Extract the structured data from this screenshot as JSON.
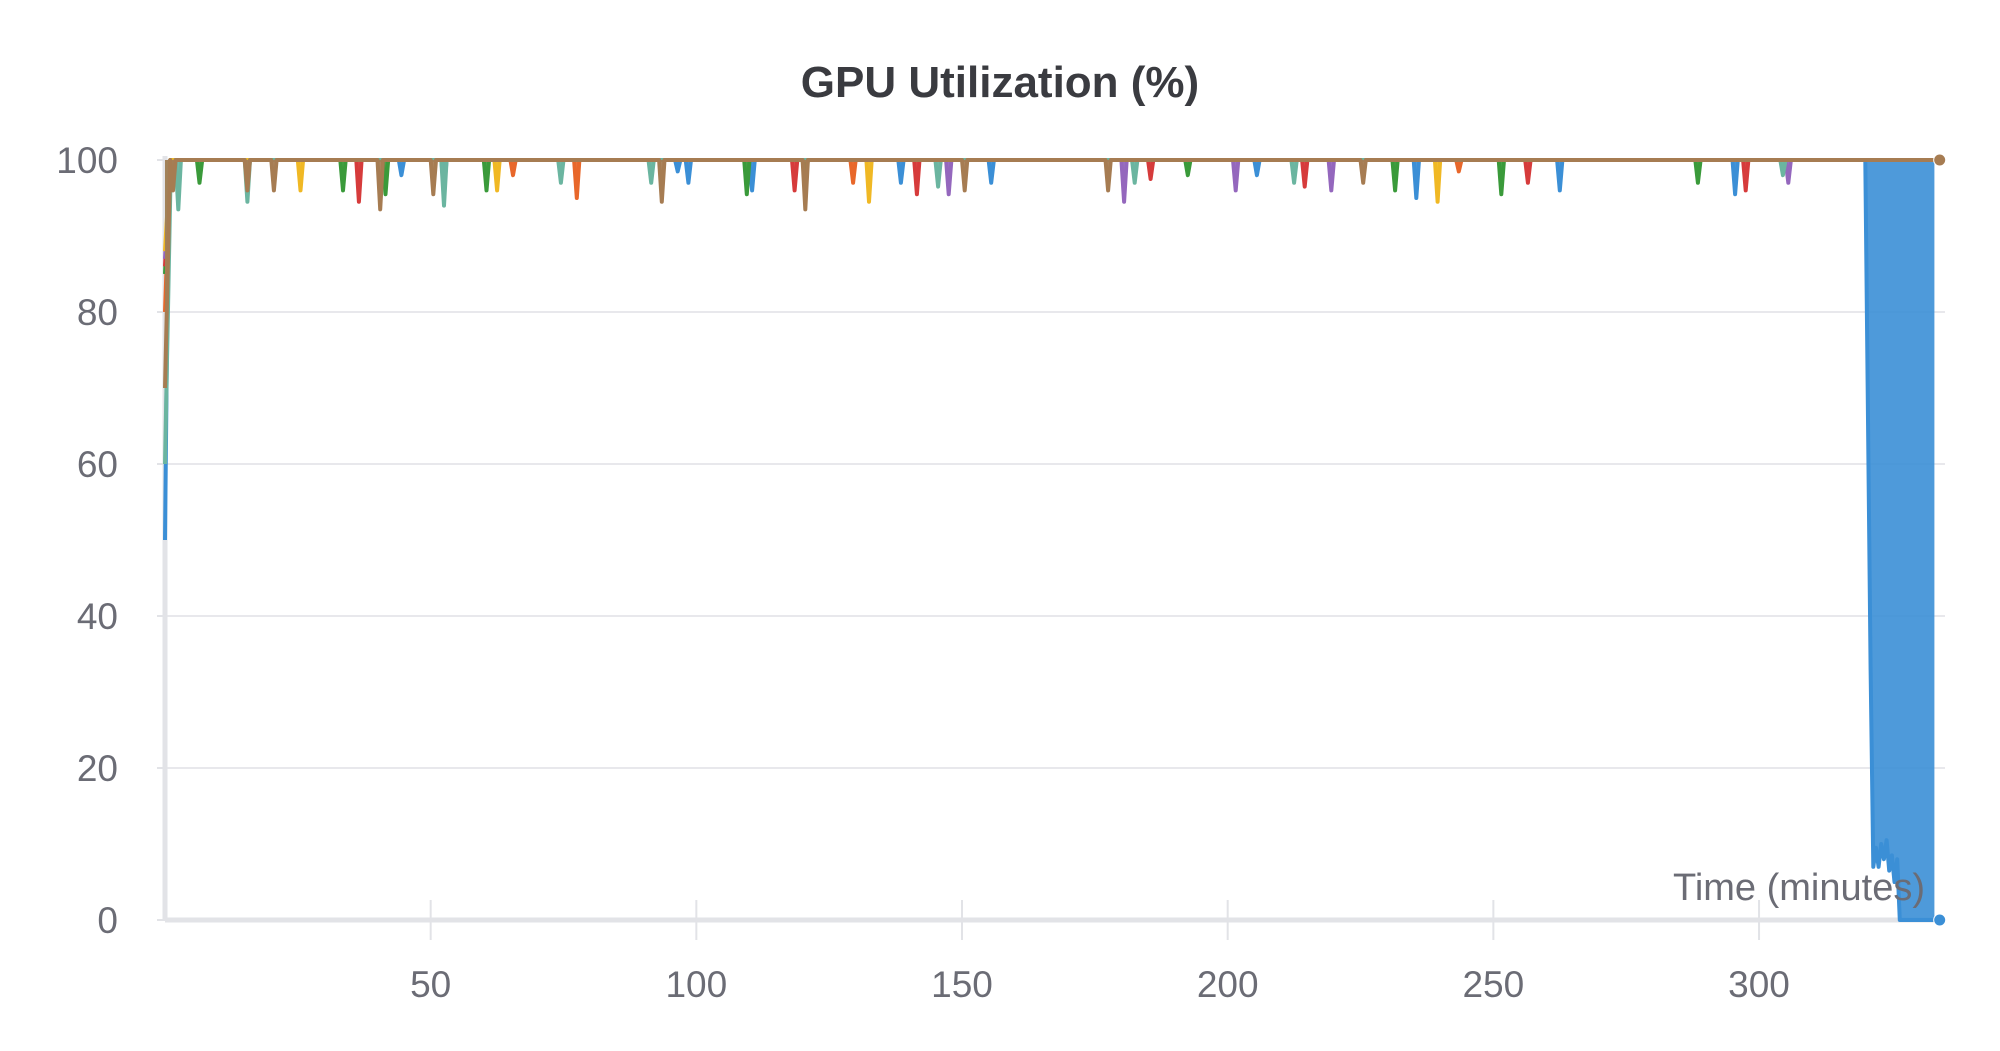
{
  "chart_data": {
    "type": "line",
    "title": "GPU Utilization (%)",
    "xlabel": "Time (minutes)",
    "ylabel": "",
    "xlim": [
      0,
      335
    ],
    "ylim": [
      0,
      100
    ],
    "x_ticks": [
      50,
      100,
      150,
      200,
      250,
      300
    ],
    "y_ticks": [
      0,
      20,
      40,
      60,
      80,
      100
    ],
    "grid": true,
    "legend": "none",
    "colors": {
      "blue": "#3b8fd6",
      "orange": "#e8672a",
      "green": "#3a9a3a",
      "red": "#d63b3b",
      "purple": "#9467bd",
      "brown": "#a67c52",
      "teal": "#6bb5a0",
      "yellow": "#f0b824",
      "grid": "#e8e8ec",
      "axis": "#e2e3e7"
    },
    "series": [
      {
        "color": "#3b8fd6",
        "x": [
          0,
          0.5,
          1,
          44,
          44.5,
          45,
          52,
          52.5,
          53,
          96,
          96.5,
          97,
          98,
          98.5,
          99,
          110,
          110.5,
          111,
          138,
          138.5,
          139,
          155,
          155.5,
          156,
          205,
          205.5,
          206,
          235,
          235.5,
          236,
          262,
          262.5,
          263,
          295,
          295.5,
          296,
          320,
          321,
          321.5,
          322,
          322.5,
          323,
          323.5,
          324,
          324.5,
          325,
          325.5,
          326,
          326.5,
          327,
          333
        ],
        "y": [
          50,
          85,
          100,
          100,
          98,
          100,
          100,
          96,
          100,
          100,
          98.5,
          100,
          100,
          97,
          100,
          100,
          96,
          100,
          100,
          97,
          100,
          100,
          97,
          100,
          100,
          98,
          100,
          100,
          95,
          100,
          100,
          96,
          100,
          100,
          95.5,
          100,
          100,
          33,
          7,
          9.5,
          7,
          10,
          8,
          10.5,
          6.5,
          8.5,
          5,
          8,
          0,
          0,
          0
        ]
      },
      {
        "color": "#e8672a",
        "x": [
          0,
          1,
          65,
          65.5,
          66,
          77,
          77.5,
          78,
          129,
          129.5,
          130,
          243,
          243.5,
          244
        ],
        "y": [
          80,
          100,
          100,
          98,
          100,
          100,
          95,
          100,
          100,
          97,
          100,
          100,
          98.5,
          100
        ]
      },
      {
        "color": "#3a9a3a",
        "x": [
          0,
          1,
          6,
          6.5,
          7,
          33,
          33.5,
          34,
          41,
          41.5,
          42,
          60,
          60.5,
          61,
          109,
          109.5,
          110,
          120,
          120.5,
          121,
          192,
          192.5,
          193,
          231,
          231.5,
          232,
          251,
          251.5,
          252,
          288,
          288.5,
          289
        ],
        "y": [
          85,
          100,
          100,
          97,
          100,
          100,
          96,
          100,
          100,
          95.5,
          100,
          100,
          96,
          100,
          100,
          95.5,
          100,
          100,
          97,
          100,
          100,
          98,
          100,
          100,
          96,
          100,
          100,
          95.5,
          100,
          100,
          97,
          100
        ]
      },
      {
        "color": "#d63b3b",
        "x": [
          0,
          1,
          36,
          36.5,
          37,
          118,
          118.5,
          119,
          141,
          141.5,
          142,
          185,
          185.5,
          186,
          214,
          214.5,
          215,
          256,
          256.5,
          257,
          297,
          297.5,
          298
        ],
        "y": [
          86,
          100,
          100,
          94.5,
          100,
          100,
          96,
          100,
          100,
          95.5,
          100,
          100,
          97.5,
          100,
          100,
          96.5,
          100,
          100,
          97,
          100,
          100,
          96,
          100
        ]
      },
      {
        "color": "#9467bd",
        "x": [
          0,
          1,
          147,
          147.5,
          148,
          180,
          180.5,
          181,
          201,
          201.5,
          202,
          219,
          219.5,
          220,
          305,
          305.5,
          306
        ],
        "y": [
          87,
          100,
          100,
          95.5,
          100,
          100,
          94.5,
          100,
          100,
          96,
          100,
          100,
          96,
          100,
          100,
          97,
          100
        ]
      },
      {
        "color": "#f0b824",
        "x": [
          0,
          1,
          25,
          25.5,
          26,
          62,
          62.5,
          63,
          132,
          132.5,
          133,
          239,
          239.5,
          240
        ],
        "y": [
          88,
          100,
          100,
          96,
          100,
          100,
          96,
          100,
          100,
          94.5,
          100,
          100,
          94.5,
          100
        ]
      },
      {
        "color": "#6bb5a0",
        "x": [
          0,
          1,
          2,
          2.5,
          3,
          15,
          15.5,
          16,
          52,
          52.5,
          53,
          74,
          74.5,
          75,
          91,
          91.5,
          92,
          145,
          145.5,
          146,
          182,
          182.5,
          183,
          212,
          212.5,
          213,
          304,
          304.5,
          305
        ],
        "y": [
          60,
          96,
          100,
          93.5,
          100,
          100,
          94.5,
          100,
          100,
          94,
          100,
          100,
          97,
          100,
          100,
          97,
          100,
          100,
          96.5,
          100,
          100,
          97,
          100,
          100,
          97,
          100,
          100,
          98,
          100
        ]
      },
      {
        "color": "#a67c52",
        "x": [
          0,
          1,
          1.5,
          2,
          15,
          15.5,
          16,
          20,
          20.5,
          21,
          40,
          40.5,
          41,
          50,
          50.5,
          51,
          93,
          93.5,
          94,
          120,
          120.5,
          121,
          150,
          150.5,
          151,
          177,
          177.5,
          178,
          225,
          225.5,
          226,
          334
        ],
        "y": [
          70,
          100,
          96,
          100,
          100,
          96,
          100,
          100,
          96,
          100,
          100,
          93.5,
          100,
          100,
          95.5,
          100,
          100,
          94.5,
          100,
          100,
          93.5,
          100,
          100,
          96,
          100,
          100,
          96,
          100,
          100,
          97,
          100,
          100
        ]
      }
    ],
    "end_markers": [
      {
        "color": "#a67c52",
        "x": 334,
        "y": 100
      },
      {
        "color": "#3b8fd6",
        "x": 334,
        "y": 0
      }
    ]
  }
}
